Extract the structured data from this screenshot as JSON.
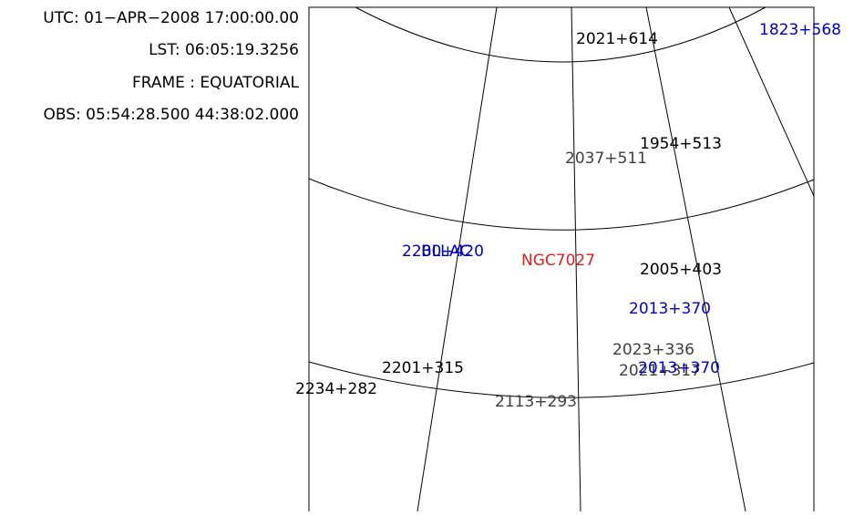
{
  "header": {
    "utc": "UTC: 01−APR−2008 17:00:00.00",
    "lst": "LST: 06:05:19.3256",
    "frame": "FRAME : EQUATORIAL",
    "obs": "OBS: 05:54:28.500 44:38:02.000"
  },
  "sources": [
    {
      "label": "2021+614",
      "color": "#000000"
    },
    {
      "label": "1823+568",
      "color": "#0000c0"
    },
    {
      "label": "1954+513",
      "color": "#000000"
    },
    {
      "label": "2037+511",
      "color": "#404040"
    },
    {
      "label": "2200+420",
      "color": "#0000c0"
    },
    {
      "label": "BLLAC",
      "color": "#0000c0"
    },
    {
      "label": "NGC7027",
      "color": "#e02020"
    },
    {
      "label": "2005+403",
      "color": "#000000"
    },
    {
      "label": "2013+370",
      "color": "#0000c0"
    },
    {
      "label": "2023+336",
      "color": "#404040"
    },
    {
      "label": "2021+317",
      "color": "#404040"
    },
    {
      "label": "2013+370",
      "color": "#0000c0"
    },
    {
      "label": "2201+315",
      "color": "#000000"
    },
    {
      "label": "2234+282",
      "color": "#000000"
    },
    {
      "label": "2113+293",
      "color": "#404040"
    }
  ]
}
